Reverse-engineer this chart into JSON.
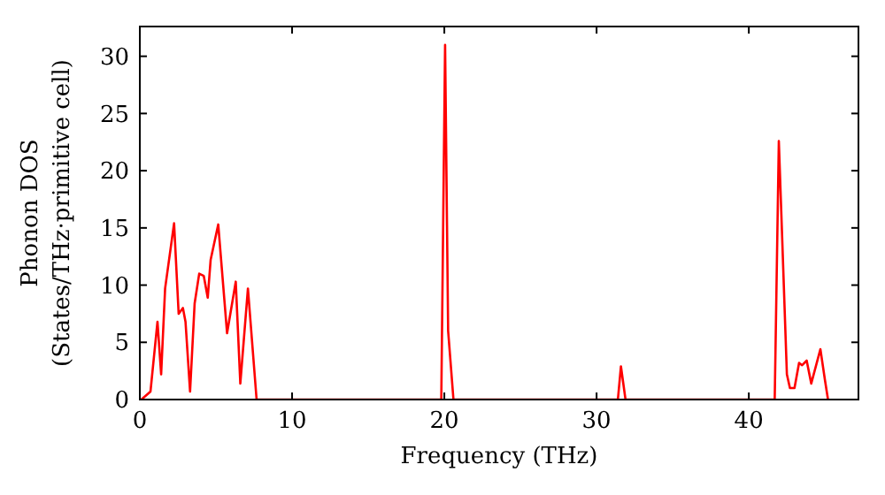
{
  "chart_data": {
    "type": "line",
    "xlabel": "Frequency (THz)",
    "ylabel": "Phonon DOS\n(States/THz·primitive cell)",
    "xlim": [
      0,
      47.2
    ],
    "ylim": [
      0,
      32.6
    ],
    "xticks": [
      0,
      10,
      20,
      30,
      40
    ],
    "yticks": [
      0,
      5,
      10,
      15,
      20,
      25,
      30
    ],
    "grid": false,
    "line_style": "solid",
    "series": [
      {
        "color": "#ff0000",
        "x": [
          0,
          0.1,
          0.7,
          1.16,
          1.4,
          1.66,
          2.25,
          2.55,
          2.83,
          3.0,
          3.3,
          3.6,
          3.9,
          4.2,
          4.46,
          4.65,
          5.15,
          5.73,
          6.3,
          6.6,
          7.1,
          7.67,
          19.8,
          20.05,
          20.25,
          20.6,
          31.4,
          31.6,
          31.9,
          41.7,
          41.97,
          42.5,
          42.7,
          43.0,
          43.3,
          43.5,
          43.8,
          44.1,
          44.7,
          45.0,
          45.2
        ],
        "values": [
          0,
          0,
          0.7,
          6.8,
          2.2,
          9.7,
          15.4,
          7.5,
          8.0,
          6.8,
          0.7,
          8.4,
          11,
          10.8,
          8.9,
          12.2,
          15.3,
          5.8,
          10.3,
          1.4,
          9.7,
          0,
          0,
          31.0,
          6,
          0,
          0,
          2.9,
          0,
          0,
          22.6,
          2.2,
          1.0,
          1.0,
          3.2,
          3.0,
          3.4,
          1.4,
          4.4,
          1.7,
          0
        ]
      }
    ]
  }
}
